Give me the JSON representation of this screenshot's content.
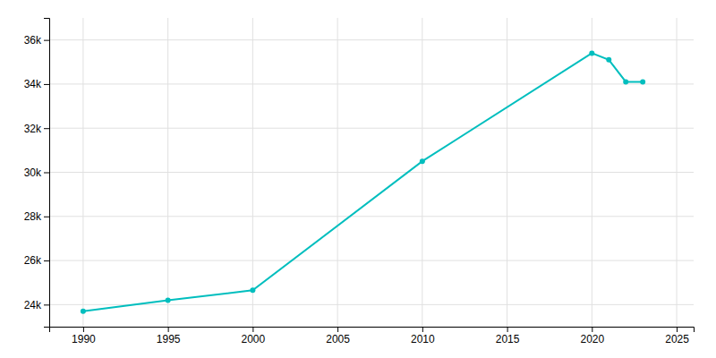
{
  "chart_data": {
    "type": "line",
    "x": [
      1990,
      1995,
      2000,
      2010,
      2020,
      2021,
      2022,
      2023
    ],
    "values": [
      23700,
      24200,
      24650,
      30500,
      35400,
      35100,
      34100,
      34100
    ],
    "color": "#00BEBE",
    "marker": "circle",
    "xlim": [
      1988,
      2026
    ],
    "ylim": [
      23000,
      37000
    ],
    "xticks": [
      1990,
      1995,
      2000,
      2005,
      2010,
      2015,
      2020,
      2025
    ],
    "yticks": [
      {
        "value": 24000,
        "label": "24k"
      },
      {
        "value": 26000,
        "label": "26k"
      },
      {
        "value": 28000,
        "label": "28k"
      },
      {
        "value": 30000,
        "label": "30k"
      },
      {
        "value": 32000,
        "label": "32k"
      },
      {
        "value": 34000,
        "label": "34k"
      },
      {
        "value": 36000,
        "label": "36k"
      }
    ],
    "grid": true
  }
}
